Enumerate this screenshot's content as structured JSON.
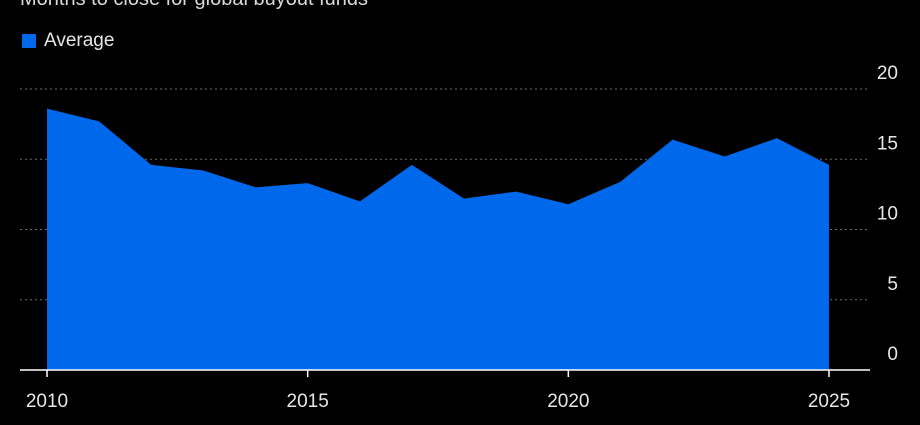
{
  "subtitle": "Months to close for global buyout funds",
  "legend": [
    {
      "label": "Average",
      "color": "#0068ea"
    }
  ],
  "chart_data": {
    "type": "area",
    "subtitle": "Months to close for global buyout funds",
    "series": [
      {
        "name": "Average",
        "color": "#0068ea",
        "x": [
          2010,
          2011,
          2012,
          2013,
          2014,
          2015,
          2016,
          2017,
          2018,
          2019,
          2020,
          2021,
          2022,
          2023,
          2024,
          2025
        ],
        "y": [
          18.6,
          17.7,
          14.6,
          14.2,
          13.0,
          13.3,
          12.0,
          14.6,
          12.2,
          12.7,
          11.8,
          13.4,
          16.4,
          15.2,
          16.5,
          14.6
        ]
      }
    ],
    "x_ticks": [
      "2010",
      "2015",
      "2020",
      "2025"
    ],
    "x_tick_values": [
      2010,
      2015,
      2020,
      2025
    ],
    "y_ticks": [
      "0",
      "5",
      "10",
      "15",
      "20"
    ],
    "y_tick_values": [
      0,
      5,
      10,
      15,
      20
    ],
    "xlim": [
      2010,
      2025
    ],
    "ylim": [
      0,
      20
    ],
    "y_axis_side": "right",
    "grid": "horizontal dotted",
    "legend_position": "top-left",
    "background": "#000000",
    "grid_color": "#6b6b6b",
    "axis_color": "#ffffff"
  }
}
